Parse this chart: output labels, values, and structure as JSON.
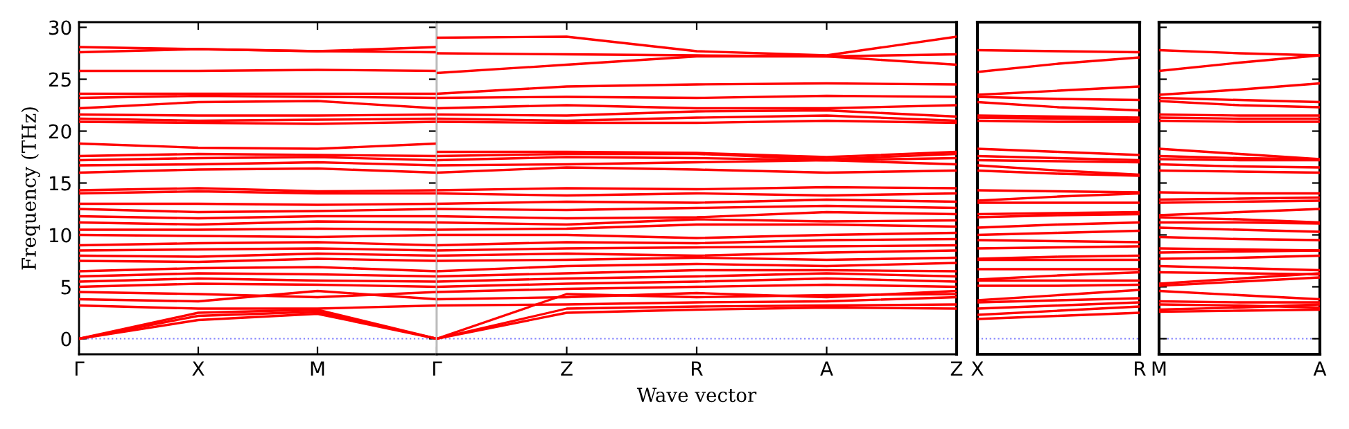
{
  "chart_data": [
    {
      "type": "line",
      "ylabel": "Frequency (THz)",
      "categories": [
        "Γ",
        "X",
        "M",
        "Γ"
      ],
      "ylim": [
        -1.5,
        30.5
      ],
      "yticks": [
        0,
        5,
        10,
        15,
        20,
        25,
        30
      ],
      "grid": false,
      "legend": false,
      "marker": "none",
      "line_style": "solid",
      "ref_lines": [
        {
          "axis": "y",
          "value": 0,
          "color": "#7f7fff",
          "line_style": "dotted"
        }
      ],
      "series": [
        {
          "color": "#ff0000",
          "values": [
            0,
            1.8,
            2.4,
            0
          ]
        },
        {
          "color": "#ff0000",
          "values": [
            0,
            2.2,
            2.6,
            0
          ]
        },
        {
          "color": "#ff0000",
          "values": [
            0,
            2.5,
            2.8,
            0
          ]
        },
        {
          "color": "#ff0000",
          "values": [
            3.2,
            2.9,
            2.9,
            3.2
          ]
        },
        {
          "color": "#ff0000",
          "values": [
            3.8,
            3.6,
            4.6,
            3.8
          ]
        },
        {
          "color": "#ff0000",
          "values": [
            4.5,
            4.3,
            4.0,
            4.5
          ]
        },
        {
          "color": "#ff0000",
          "values": [
            5.0,
            5.3,
            5.2,
            5.0
          ]
        },
        {
          "color": "#ff0000",
          "values": [
            5.5,
            5.8,
            5.6,
            5.5
          ]
        },
        {
          "color": "#ff0000",
          "values": [
            6.0,
            6.3,
            6.2,
            6.0
          ]
        },
        {
          "color": "#ff0000",
          "values": [
            6.5,
            6.8,
            6.9,
            6.5
          ]
        },
        {
          "color": "#ff0000",
          "values": [
            7.5,
            7.4,
            7.7,
            7.5
          ]
        },
        {
          "color": "#ff0000",
          "values": [
            8.0,
            7.9,
            8.2,
            8.0
          ]
        },
        {
          "color": "#ff0000",
          "values": [
            8.5,
            8.6,
            8.7,
            8.5
          ]
        },
        {
          "color": "#ff0000",
          "values": [
            9.0,
            9.2,
            9.3,
            9.0
          ]
        },
        {
          "color": "#ff0000",
          "values": [
            10.0,
            9.9,
            9.8,
            10.0
          ]
        },
        {
          "color": "#ff0000",
          "values": [
            10.5,
            10.5,
            10.6,
            10.5
          ]
        },
        {
          "color": "#ff0000",
          "values": [
            11.2,
            11.0,
            11.3,
            11.2
          ]
        },
        {
          "color": "#ff0000",
          "values": [
            11.8,
            11.6,
            11.8,
            11.8
          ]
        },
        {
          "color": "#ff0000",
          "values": [
            12.5,
            12.2,
            12.3,
            12.5
          ]
        },
        {
          "color": "#ff0000",
          "values": [
            13.0,
            13.0,
            12.9,
            13.0
          ]
        },
        {
          "color": "#ff0000",
          "values": [
            14.0,
            14.2,
            14.0,
            14.0
          ]
        },
        {
          "color": "#ff0000",
          "values": [
            14.3,
            14.5,
            14.2,
            14.3
          ]
        },
        {
          "color": "#ff0000",
          "values": [
            16.0,
            16.3,
            16.4,
            16.0
          ]
        },
        {
          "color": "#ff0000",
          "values": [
            16.7,
            16.8,
            17.0,
            16.7
          ]
        },
        {
          "color": "#ff0000",
          "values": [
            17.2,
            17.4,
            17.5,
            17.2
          ]
        },
        {
          "color": "#ff0000",
          "values": [
            17.6,
            17.8,
            17.7,
            17.6
          ]
        },
        {
          "color": "#ff0000",
          "values": [
            18.8,
            18.4,
            18.3,
            18.8
          ]
        },
        {
          "color": "#ff0000",
          "values": [
            20.9,
            20.8,
            20.7,
            20.9
          ]
        },
        {
          "color": "#ff0000",
          "values": [
            21.2,
            21.0,
            21.1,
            21.2
          ]
        },
        {
          "color": "#ff0000",
          "values": [
            21.6,
            21.5,
            21.5,
            21.6
          ]
        },
        {
          "color": "#ff0000",
          "values": [
            22.2,
            22.8,
            22.9,
            22.2
          ]
        },
        {
          "color": "#ff0000",
          "values": [
            23.2,
            23.4,
            23.3,
            23.2
          ]
        },
        {
          "color": "#ff0000",
          "values": [
            23.6,
            23.6,
            23.6,
            23.6
          ]
        },
        {
          "color": "#ff0000",
          "values": [
            25.8,
            25.8,
            25.9,
            25.8
          ]
        },
        {
          "color": "#ff0000",
          "values": [
            27.6,
            27.9,
            27.7,
            27.6
          ]
        },
        {
          "color": "#ff0000",
          "values": [
            28.1,
            27.9,
            27.7,
            28.1
          ]
        }
      ]
    },
    {
      "type": "line",
      "xlabel": "Wave vector",
      "categories": [
        null,
        "Z",
        "R",
        "A",
        "Z"
      ],
      "ylim": [
        -1.5,
        30.5
      ],
      "tick_labels": "x",
      "grid": false,
      "legend": false,
      "marker": "none",
      "line_style": "solid",
      "ref_lines": [
        {
          "axis": "y",
          "value": 0,
          "color": "#7f7fff",
          "line_style": "dotted"
        }
      ],
      "series": [
        {
          "color": "#ff0000",
          "values": [
            0,
            2.5,
            2.8,
            3.0,
            2.9
          ]
        },
        {
          "color": "#ff0000",
          "values": [
            0,
            2.9,
            3.1,
            3.2,
            3.3
          ]
        },
        {
          "color": "#ff0000",
          "values": [
            0,
            4.3,
            4.0,
            4.2,
            4.3
          ]
        },
        {
          "color": "#ff0000",
          "values": [
            3.2,
            3.3,
            3.5,
            3.6,
            4.0
          ]
        },
        {
          "color": "#ff0000",
          "values": [
            3.8,
            4.0,
            4.4,
            4.0,
            4.6
          ]
        },
        {
          "color": "#ff0000",
          "values": [
            4.5,
            4.8,
            5.0,
            5.2,
            5.0
          ]
        },
        {
          "color": "#ff0000",
          "values": [
            5.0,
            5.3,
            5.5,
            5.8,
            5.5
          ]
        },
        {
          "color": "#ff0000",
          "values": [
            5.5,
            5.8,
            6.0,
            6.3,
            6.0
          ]
        },
        {
          "color": "#ff0000",
          "values": [
            6.0,
            6.3,
            6.6,
            6.6,
            6.5
          ]
        },
        {
          "color": "#ff0000",
          "values": [
            6.5,
            7.0,
            7.2,
            7.0,
            7.3
          ]
        },
        {
          "color": "#ff0000",
          "values": [
            7.5,
            7.6,
            7.8,
            7.6,
            7.8
          ]
        },
        {
          "color": "#ff0000",
          "values": [
            8.0,
            8.2,
            8.0,
            8.3,
            8.5
          ]
        },
        {
          "color": "#ff0000",
          "values": [
            8.5,
            8.7,
            8.8,
            8.9,
            9.0
          ]
        },
        {
          "color": "#ff0000",
          "values": [
            9.0,
            9.3,
            9.2,
            9.5,
            9.6
          ]
        },
        {
          "color": "#ff0000",
          "values": [
            10.0,
            10.0,
            9.7,
            10.0,
            10.2
          ]
        },
        {
          "color": "#ff0000",
          "values": [
            10.5,
            10.6,
            11.0,
            11.0,
            10.8
          ]
        },
        {
          "color": "#ff0000",
          "values": [
            11.2,
            11.0,
            11.5,
            11.3,
            11.4
          ]
        },
        {
          "color": "#ff0000",
          "values": [
            11.8,
            11.6,
            11.7,
            12.2,
            12.0
          ]
        },
        {
          "color": "#ff0000",
          "values": [
            12.5,
            12.4,
            12.6,
            12.8,
            12.6
          ]
        },
        {
          "color": "#ff0000",
          "values": [
            13.0,
            13.2,
            13.1,
            13.4,
            13.2
          ]
        },
        {
          "color": "#ff0000",
          "values": [
            14.0,
            13.8,
            14.0,
            13.8,
            14.0
          ]
        },
        {
          "color": "#ff0000",
          "values": [
            14.3,
            14.5,
            14.4,
            14.6,
            14.5
          ]
        },
        {
          "color": "#ff0000",
          "values": [
            16.0,
            16.5,
            16.3,
            16.0,
            16.2
          ]
        },
        {
          "color": "#ff0000",
          "values": [
            16.7,
            16.8,
            17.0,
            17.2,
            16.8
          ]
        },
        {
          "color": "#ff0000",
          "values": [
            17.2,
            17.5,
            17.4,
            17.2,
            17.4
          ]
        },
        {
          "color": "#ff0000",
          "values": [
            17.6,
            17.8,
            17.8,
            17.3,
            17.8
          ]
        },
        {
          "color": "#ff0000",
          "values": [
            18.0,
            18.0,
            17.9,
            17.5,
            18.0
          ]
        },
        {
          "color": "#ff0000",
          "values": [
            20.9,
            20.8,
            20.8,
            21.0,
            20.8
          ]
        },
        {
          "color": "#ff0000",
          "values": [
            21.2,
            21.0,
            21.3,
            21.5,
            21.0
          ]
        },
        {
          "color": "#ff0000",
          "values": [
            21.6,
            21.5,
            21.9,
            22.0,
            21.4
          ]
        },
        {
          "color": "#ff0000",
          "values": [
            22.2,
            22.5,
            22.2,
            22.2,
            22.5
          ]
        },
        {
          "color": "#ff0000",
          "values": [
            23.2,
            23.3,
            23.2,
            23.4,
            23.3
          ]
        },
        {
          "color": "#ff0000",
          "values": [
            23.6,
            24.3,
            24.5,
            24.6,
            24.5
          ]
        },
        {
          "color": "#ff0000",
          "values": [
            25.6,
            26.4,
            27.2,
            27.2,
            26.4
          ]
        },
        {
          "color": "#ff0000",
          "values": [
            27.5,
            27.4,
            27.3,
            27.2,
            27.4
          ]
        },
        {
          "color": "#ff0000",
          "values": [
            29.0,
            29.1,
            27.7,
            27.3,
            29.1
          ]
        }
      ]
    },
    {
      "type": "line",
      "categories": [
        "X",
        null,
        "R"
      ],
      "ylim": [
        -1.5,
        30.5
      ],
      "tick_labels": "x",
      "grid": false,
      "legend": false,
      "marker": "none",
      "line_style": "solid",
      "ref_lines": [
        {
          "axis": "y",
          "value": 0,
          "color": "#7f7fff",
          "line_style": "dotted"
        }
      ],
      "series": [
        {
          "color": "#ff0000",
          "values": [
            1.9,
            2.2,
            2.5
          ]
        },
        {
          "color": "#ff0000",
          "values": [
            2.3,
            2.7,
            3.1
          ]
        },
        {
          "color": "#ff0000",
          "values": [
            2.9,
            3.2,
            3.5
          ]
        },
        {
          "color": "#ff0000",
          "values": [
            3.5,
            3.7,
            3.9
          ]
        },
        {
          "color": "#ff0000",
          "values": [
            3.7,
            4.2,
            4.7
          ]
        },
        {
          "color": "#ff0000",
          "values": [
            5.1,
            5.1,
            5.2
          ]
        },
        {
          "color": "#ff0000",
          "values": [
            5.6,
            5.6,
            5.6
          ]
        },
        {
          "color": "#ff0000",
          "values": [
            5.7,
            6.1,
            6.4
          ]
        },
        {
          "color": "#ff0000",
          "values": [
            6.7,
            6.7,
            6.7
          ]
        },
        {
          "color": "#ff0000",
          "values": [
            7.6,
            7.6,
            7.6
          ]
        },
        {
          "color": "#ff0000",
          "values": [
            7.7,
            7.9,
            8.0
          ]
        },
        {
          "color": "#ff0000",
          "values": [
            8.7,
            8.8,
            8.9
          ]
        },
        {
          "color": "#ff0000",
          "values": [
            9.5,
            9.4,
            9.3
          ]
        },
        {
          "color": "#ff0000",
          "values": [
            10.0,
            10.2,
            10.4
          ]
        },
        {
          "color": "#ff0000",
          "values": [
            10.7,
            11.0,
            11.2
          ]
        },
        {
          "color": "#ff0000",
          "values": [
            11.7,
            11.9,
            12.0
          ]
        },
        {
          "color": "#ff0000",
          "values": [
            12.0,
            12.1,
            12.2
          ]
        },
        {
          "color": "#ff0000",
          "values": [
            13.1,
            13.1,
            13.1
          ]
        },
        {
          "color": "#ff0000",
          "values": [
            13.3,
            13.7,
            14.0
          ]
        },
        {
          "color": "#ff0000",
          "values": [
            14.3,
            14.2,
            14.1
          ]
        },
        {
          "color": "#ff0000",
          "values": [
            16.2,
            15.9,
            15.7
          ]
        },
        {
          "color": "#ff0000",
          "values": [
            16.7,
            16.2,
            15.8
          ]
        },
        {
          "color": "#ff0000",
          "values": [
            17.2,
            17.1,
            17.0
          ]
        },
        {
          "color": "#ff0000",
          "values": [
            17.6,
            17.4,
            17.2
          ]
        },
        {
          "color": "#ff0000",
          "values": [
            18.3,
            18.0,
            17.7
          ]
        },
        {
          "color": "#ff0000",
          "values": [
            21.0,
            20.9,
            20.9
          ]
        },
        {
          "color": "#ff0000",
          "values": [
            21.3,
            21.2,
            21.1
          ]
        },
        {
          "color": "#ff0000",
          "values": [
            21.5,
            21.4,
            21.3
          ]
        },
        {
          "color": "#ff0000",
          "values": [
            22.8,
            22.3,
            22.0
          ]
        },
        {
          "color": "#ff0000",
          "values": [
            23.3,
            23.1,
            23.0
          ]
        },
        {
          "color": "#ff0000",
          "values": [
            23.5,
            23.9,
            24.3
          ]
        },
        {
          "color": "#ff0000",
          "values": [
            25.7,
            26.5,
            27.1
          ]
        },
        {
          "color": "#ff0000",
          "values": [
            27.8,
            27.7,
            27.6
          ]
        }
      ]
    },
    {
      "type": "line",
      "categories": [
        "M",
        null,
        "A"
      ],
      "ylim": [
        -1.5,
        30.5
      ],
      "yticks": [
        {
          "value": 0,
          "label": null
        },
        {
          "value": 5,
          "label": null
        },
        {
          "value": 10,
          "label": null
        },
        {
          "value": 15,
          "label": null
        },
        {
          "value": 20,
          "label": null
        },
        {
          "value": 25,
          "label": null
        },
        {
          "value": 30,
          "label": null
        }
      ],
      "tick_labels": "x",
      "grid": false,
      "legend": false,
      "marker": "none",
      "line_style": "solid",
      "ref_lines": [
        {
          "axis": "y",
          "value": 0,
          "color": "#7f7fff",
          "line_style": "dotted"
        }
      ],
      "series": [
        {
          "color": "#ff0000",
          "values": [
            2.6,
            2.7,
            2.8
          ]
        },
        {
          "color": "#ff0000",
          "values": [
            2.8,
            3.0,
            3.3
          ]
        },
        {
          "color": "#ff0000",
          "values": [
            3.3,
            3.2,
            3.0
          ]
        },
        {
          "color": "#ff0000",
          "values": [
            3.6,
            3.5,
            3.5
          ]
        },
        {
          "color": "#ff0000",
          "values": [
            4.6,
            4.2,
            3.8
          ]
        },
        {
          "color": "#ff0000",
          "values": [
            5.1,
            5.5,
            5.9
          ]
        },
        {
          "color": "#ff0000",
          "values": [
            5.3,
            5.8,
            6.3
          ]
        },
        {
          "color": "#ff0000",
          "values": [
            6.4,
            6.3,
            6.2
          ]
        },
        {
          "color": "#ff0000",
          "values": [
            7.0,
            6.8,
            6.6
          ]
        },
        {
          "color": "#ff0000",
          "values": [
            7.7,
            7.8,
            8.0
          ]
        },
        {
          "color": "#ff0000",
          "values": [
            8.3,
            8.4,
            8.5
          ]
        },
        {
          "color": "#ff0000",
          "values": [
            8.7,
            8.6,
            8.5
          ]
        },
        {
          "color": "#ff0000",
          "values": [
            9.8,
            9.6,
            9.5
          ]
        },
        {
          "color": "#ff0000",
          "values": [
            10.7,
            10.5,
            10.3
          ]
        },
        {
          "color": "#ff0000",
          "values": [
            11.2,
            11.2,
            11.1
          ]
        },
        {
          "color": "#ff0000",
          "values": [
            11.7,
            11.5,
            11.2
          ]
        },
        {
          "color": "#ff0000",
          "values": [
            11.9,
            12.2,
            12.5
          ]
        },
        {
          "color": "#ff0000",
          "values": [
            13.1,
            13.2,
            13.3
          ]
        },
        {
          "color": "#ff0000",
          "values": [
            13.4,
            13.5,
            13.6
          ]
        },
        {
          "color": "#ff0000",
          "values": [
            14.1,
            14.0,
            14.0
          ]
        },
        {
          "color": "#ff0000",
          "values": [
            16.2,
            16.1,
            16.0
          ]
        },
        {
          "color": "#ff0000",
          "values": [
            16.8,
            16.6,
            16.5
          ]
        },
        {
          "color": "#ff0000",
          "values": [
            17.3,
            17.2,
            17.2
          ]
        },
        {
          "color": "#ff0000",
          "values": [
            17.6,
            17.4,
            17.3
          ]
        },
        {
          "color": "#ff0000",
          "values": [
            18.3,
            17.8,
            17.3
          ]
        },
        {
          "color": "#ff0000",
          "values": [
            21.0,
            20.9,
            20.9
          ]
        },
        {
          "color": "#ff0000",
          "values": [
            21.3,
            21.2,
            21.2
          ]
        },
        {
          "color": "#ff0000",
          "values": [
            21.6,
            21.5,
            21.5
          ]
        },
        {
          "color": "#ff0000",
          "values": [
            22.9,
            22.5,
            22.3
          ]
        },
        {
          "color": "#ff0000",
          "values": [
            23.2,
            23.0,
            22.8
          ]
        },
        {
          "color": "#ff0000",
          "values": [
            23.5,
            24.0,
            24.6
          ]
        },
        {
          "color": "#ff0000",
          "values": [
            25.8,
            26.6,
            27.3
          ]
        },
        {
          "color": "#ff0000",
          "values": [
            27.8,
            27.5,
            27.3
          ]
        }
      ]
    }
  ]
}
